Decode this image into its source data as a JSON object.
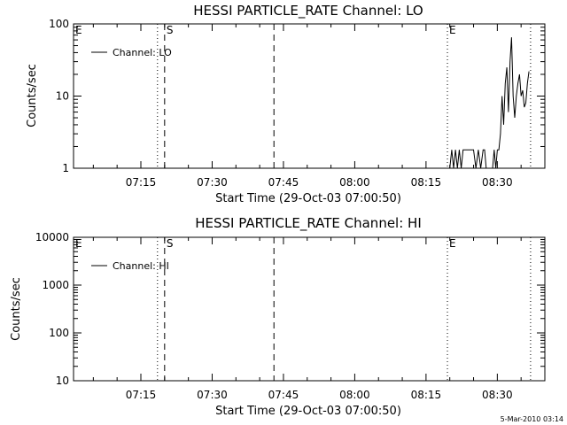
{
  "chart_data": [
    {
      "type": "line",
      "title": "HESSI PARTICLE_RATE Channel: LO",
      "xlabel": "Start Time (29-Oct-03 07:00:50)",
      "ylabel": "Counts/sec",
      "yscale": "log",
      "ylim": [
        1,
        100
      ],
      "yticks": [
        {
          "value": 1,
          "label": "1"
        },
        {
          "value": 10,
          "label": "10"
        },
        {
          "value": 100,
          "label": "100"
        }
      ],
      "xlim": [
        "07:00:50",
        "08:40:00"
      ],
      "xticks": [
        "07:15",
        "07:30",
        "07:45",
        "08:00",
        "08:15",
        "08:30"
      ],
      "grid": false,
      "legend": {
        "position": "top-left",
        "entries": [
          "Channel: LO"
        ]
      },
      "markers": [
        {
          "label": "E",
          "time": "07:00:50",
          "style": "none"
        },
        {
          "label": "",
          "time": "07:18:30",
          "style": "dotted"
        },
        {
          "label": "S",
          "time": "07:20:00",
          "style": "dashed"
        },
        {
          "label": "",
          "time": "07:43:00",
          "style": "dashed"
        },
        {
          "label": "E",
          "time": "08:19:30",
          "style": "dotted"
        },
        {
          "label": "",
          "time": "08:37:00",
          "style": "dotted"
        }
      ],
      "series": [
        {
          "name": "Channel: LO",
          "x": [
            "08:20:00",
            "08:20:24",
            "08:20:48",
            "08:21:12",
            "08:21:36",
            "08:22:00",
            "08:22:24",
            "08:22:48",
            "08:23:12",
            "08:23:36",
            "08:24:00",
            "08:24:30",
            "08:25:00",
            "08:25:30",
            "08:26:00",
            "08:26:30",
            "08:27:00",
            "08:27:20",
            "08:27:40",
            "08:28:00",
            "08:28:20",
            "08:28:40",
            "08:29:00",
            "08:29:20",
            "08:29:40",
            "08:30:00",
            "08:30:20",
            "08:30:40",
            "08:31:00",
            "08:31:20",
            "08:31:40",
            "08:32:00",
            "08:32:20",
            "08:32:40",
            "08:33:00",
            "08:33:20",
            "08:33:40",
            "08:34:00",
            "08:34:20",
            "08:34:40",
            "08:35:00",
            "08:35:20",
            "08:35:40",
            "08:36:00",
            "08:36:20",
            "08:36:40"
          ],
          "y": [
            1,
            1.8,
            1,
            1.8,
            1,
            1.8,
            1,
            1.8,
            1.8,
            1.8,
            1.8,
            1.8,
            1.8,
            1,
            1.8,
            1,
            1.8,
            1.8,
            1,
            1,
            1,
            1,
            1,
            1.8,
            1,
            1.8,
            1.8,
            3,
            10,
            4,
            15,
            25,
            6,
            30,
            65,
            10,
            5,
            10,
            15,
            20,
            10,
            12,
            7,
            8,
            15,
            22
          ]
        }
      ]
    },
    {
      "type": "line",
      "title": "HESSI PARTICLE_RATE Channel: HI",
      "xlabel": "Start Time (29-Oct-03 07:00:50)",
      "ylabel": "Counts/sec",
      "yscale": "log",
      "ylim": [
        10,
        10000
      ],
      "yticks": [
        {
          "value": 10,
          "label": "10"
        },
        {
          "value": 100,
          "label": "100"
        },
        {
          "value": 1000,
          "label": "1000"
        },
        {
          "value": 10000,
          "label": "10000"
        }
      ],
      "xlim": [
        "07:00:50",
        "08:40:00"
      ],
      "xticks": [
        "07:15",
        "07:30",
        "07:45",
        "08:00",
        "08:15",
        "08:30"
      ],
      "grid": false,
      "legend": {
        "position": "top-left",
        "entries": [
          "Channel: HI"
        ]
      },
      "markers": [
        {
          "label": "E",
          "time": "07:00:50",
          "style": "none"
        },
        {
          "label": "",
          "time": "07:18:30",
          "style": "dotted"
        },
        {
          "label": "S",
          "time": "07:20:00",
          "style": "dashed"
        },
        {
          "label": "",
          "time": "07:43:00",
          "style": "dashed"
        },
        {
          "label": "E",
          "time": "08:19:30",
          "style": "dotted"
        },
        {
          "label": "",
          "time": "08:37:00",
          "style": "dotted"
        }
      ],
      "series": [
        {
          "name": "Channel: HI",
          "x": [],
          "y": []
        }
      ]
    }
  ],
  "footer": {
    "timestamp": "5-Mar-2010 03:14"
  },
  "colors": {
    "background": "#ffffff",
    "foreground": "#000000"
  }
}
